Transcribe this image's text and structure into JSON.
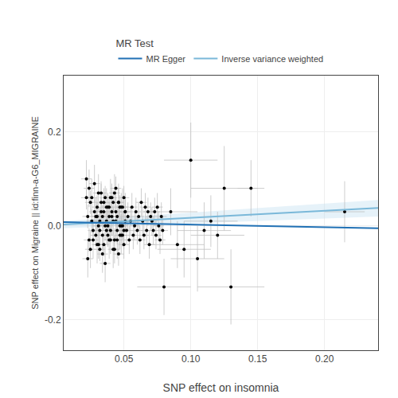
{
  "chart_data": {
    "type": "scatter",
    "xlabel": "SNP effect on insomnia",
    "ylabel": "SNP effect on Migraine || id:finn-a-G6_MIGRAINE",
    "legend_title": "MR Test",
    "legend": "top",
    "grid": true,
    "xlim": [
      0.005,
      0.24
    ],
    "ylim": [
      -0.265,
      0.32
    ],
    "xticks": [
      0.05,
      {
        "value": 0.1,
        "label": "0.10"
      },
      0.15,
      {
        "value": 0.2,
        "label": "0.20"
      }
    ],
    "yticks": [
      -0.2,
      {
        "value": 0,
        "label": "0.0"
      },
      0.2
    ],
    "points": {
      "color": "#000000",
      "error_color": "#c0c0c0",
      "x": [
        0.022,
        0.023,
        0.024,
        0.025,
        0.026,
        0.027,
        0.028,
        0.029,
        0.03,
        0.031,
        0.032,
        0.033,
        0.034,
        0.035,
        0.036,
        0.037,
        0.038,
        0.039,
        0.04,
        0.041,
        0.042,
        0.043,
        0.044,
        0.045,
        0.046,
        0.047,
        0.048,
        0.049,
        0.05,
        0.051,
        0.022,
        0.023,
        0.024,
        0.025,
        0.026,
        0.027,
        0.028,
        0.029,
        0.03,
        0.031,
        0.032,
        0.033,
        0.034,
        0.035,
        0.036,
        0.037,
        0.038,
        0.039,
        0.04,
        0.041,
        0.042,
        0.043,
        0.044,
        0.045,
        0.046,
        0.047,
        0.048,
        0.049,
        0.05,
        0.051,
        0.03,
        0.031,
        0.032,
        0.033,
        0.034,
        0.035,
        0.036,
        0.037,
        0.038,
        0.039,
        0.04,
        0.041,
        0.042,
        0.043,
        0.044,
        0.045,
        0.046,
        0.047,
        0.048,
        0.049,
        0.05,
        0.051,
        0.052,
        0.053,
        0.054,
        0.055,
        0.056,
        0.057,
        0.058,
        0.059,
        0.06,
        0.061,
        0.062,
        0.063,
        0.064,
        0.065,
        0.066,
        0.067,
        0.068,
        0.069,
        0.07,
        0.071,
        0.072,
        0.073,
        0.074,
        0.075,
        0.076,
        0.077,
        0.078,
        0.079,
        0.08,
        0.085,
        0.09,
        0.095,
        0.1,
        0.105,
        0.11,
        0.115,
        0.12,
        0.125,
        0.13,
        0.145,
        0.215
      ],
      "y": [
        0.06,
        0.02,
        -0.03,
        0.05,
        0.01,
        -0.01,
        0.03,
        -0.02,
        0.04,
        0.0,
        -0.05,
        0.07,
        0.02,
        -0.04,
        0.06,
        0.01,
        -0.02,
        0.04,
        -0.01,
        0.03,
        0.05,
        -0.03,
        0.08,
        0.02,
        -0.06,
        0.04,
        0.0,
        -0.02,
        0.06,
        0.01,
        0.1,
        -0.07,
        0.08,
        -0.05,
        0.06,
        -0.03,
        0.09,
        0.02,
        -0.04,
        0.07,
        -0.01,
        0.05,
        -0.06,
        0.03,
        -0.08,
        0.04,
        0.0,
        -0.03,
        0.06,
        0.02,
        -0.05,
        0.07,
        0.01,
        -0.03,
        0.05,
        0.0,
        -0.02,
        0.04,
        -0.01,
        0.03,
        0.02,
        -0.04,
        0.01,
        0.03,
        -0.02,
        0.05,
        0.0,
        -0.01,
        0.04,
        0.02,
        -0.03,
        0.06,
        0.01,
        -0.05,
        0.03,
        -0.01,
        0.05,
        -0.02,
        0.04,
        0.0,
        -0.04,
        0.03,
        -0.01,
        0.02,
        -0.03,
        0.01,
        0.04,
        -0.02,
        0.0,
        0.03,
        -0.01,
        0.02,
        -0.03,
        0.05,
        0.01,
        -0.02,
        0.04,
        -0.01,
        0.03,
        -0.04,
        0.02,
        0.01,
        -0.01,
        0.03,
        -0.02,
        0.04,
        0.0,
        -0.03,
        0.02,
        -0.01,
        -0.13,
        0.03,
        -0.04,
        -0.05,
        0.14,
        -0.07,
        -0.01,
        0.01,
        -0.02,
        0.08,
        -0.13,
        0.08,
        0.03
      ],
      "xerr": [
        0.004,
        0.004,
        0.004,
        0.004,
        0.004,
        0.004,
        0.004,
        0.004,
        0.004,
        0.004,
        0.004,
        0.004,
        0.004,
        0.004,
        0.004,
        0.004,
        0.004,
        0.004,
        0.004,
        0.004,
        0.004,
        0.004,
        0.004,
        0.004,
        0.004,
        0.004,
        0.004,
        0.004,
        0.004,
        0.004,
        0.004,
        0.004,
        0.004,
        0.004,
        0.004,
        0.004,
        0.004,
        0.004,
        0.004,
        0.004,
        0.004,
        0.004,
        0.004,
        0.004,
        0.004,
        0.004,
        0.004,
        0.004,
        0.004,
        0.004,
        0.004,
        0.004,
        0.004,
        0.004,
        0.004,
        0.004,
        0.004,
        0.004,
        0.004,
        0.004,
        0.004,
        0.004,
        0.004,
        0.004,
        0.004,
        0.004,
        0.004,
        0.004,
        0.004,
        0.004,
        0.004,
        0.004,
        0.004,
        0.004,
        0.004,
        0.004,
        0.004,
        0.004,
        0.004,
        0.004,
        0.004,
        0.004,
        0.004,
        0.004,
        0.004,
        0.004,
        0.004,
        0.004,
        0.004,
        0.004,
        0.004,
        0.004,
        0.004,
        0.004,
        0.004,
        0.004,
        0.004,
        0.004,
        0.004,
        0.004,
        0.004,
        0.004,
        0.004,
        0.004,
        0.004,
        0.004,
        0.004,
        0.004,
        0.004,
        0.004,
        0.02,
        0.02,
        0.02,
        0.02,
        0.02,
        0.02,
        0.02,
        0.02,
        0.02,
        0.025,
        0.025,
        0.01,
        0.015
      ],
      "yerr": [
        0.025,
        0.025,
        0.025,
        0.025,
        0.025,
        0.025,
        0.025,
        0.025,
        0.025,
        0.025,
        0.025,
        0.025,
        0.025,
        0.025,
        0.025,
        0.025,
        0.025,
        0.025,
        0.025,
        0.025,
        0.025,
        0.025,
        0.025,
        0.025,
        0.025,
        0.025,
        0.025,
        0.025,
        0.025,
        0.025,
        0.04,
        0.04,
        0.04,
        0.04,
        0.04,
        0.04,
        0.04,
        0.04,
        0.04,
        0.04,
        0.04,
        0.04,
        0.04,
        0.04,
        0.04,
        0.04,
        0.04,
        0.04,
        0.04,
        0.04,
        0.04,
        0.04,
        0.04,
        0.04,
        0.04,
        0.04,
        0.04,
        0.04,
        0.04,
        0.04,
        0.03,
        0.03,
        0.03,
        0.03,
        0.03,
        0.03,
        0.03,
        0.03,
        0.03,
        0.03,
        0.03,
        0.03,
        0.03,
        0.03,
        0.03,
        0.03,
        0.03,
        0.03,
        0.03,
        0.03,
        0.03,
        0.03,
        0.03,
        0.03,
        0.03,
        0.03,
        0.03,
        0.03,
        0.03,
        0.03,
        0.03,
        0.03,
        0.03,
        0.03,
        0.03,
        0.03,
        0.03,
        0.03,
        0.03,
        0.03,
        0.03,
        0.03,
        0.03,
        0.03,
        0.03,
        0.03,
        0.03,
        0.03,
        0.03,
        0.03,
        0.06,
        0.05,
        0.05,
        0.06,
        0.08,
        0.07,
        0.06,
        0.055,
        0.05,
        0.09,
        0.08,
        0.06,
        0.065
      ]
    },
    "series": [
      {
        "name": "Inverse variance weighted",
        "color": "#7ab8d9",
        "fill_color": "#b8d9ee",
        "x": [
          0.005,
          0.24
        ],
        "values": [
          0.003,
          0.038
        ],
        "upper": [
          0.01,
          0.055
        ],
        "lower": [
          -0.005,
          0.02
        ]
      },
      {
        "name": "MR Egger",
        "color": "#2171b5",
        "x": [
          0.005,
          0.24
        ],
        "values": [
          0.008,
          -0.005
        ]
      }
    ]
  }
}
